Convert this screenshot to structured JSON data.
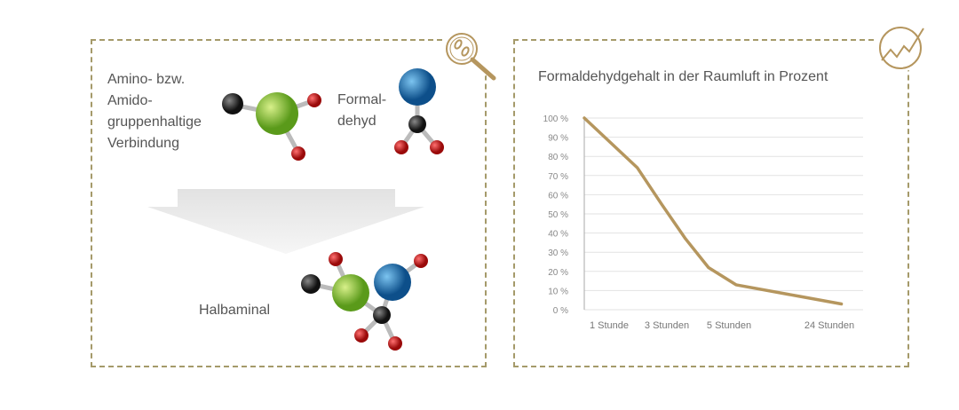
{
  "left_panel": {
    "reactant_a_label": "Amino- bzw.\nAmido-\ngruppenhaltige\nVerbindung",
    "reactant_b_label": "Formal-\ndehyd",
    "product_label": "Halbaminal",
    "icon": "magnifier-bacteria-icon"
  },
  "right_panel": {
    "icon": "trend-chart-icon"
  },
  "colors": {
    "accent": "#b5965e",
    "border": "#a59a6a",
    "green": "#8cc43a",
    "blue": "#1b6fae",
    "red": "#c8201f",
    "dark": "#333333"
  },
  "chart_data": {
    "type": "line",
    "title": "Formaldehydgehalt in der Raumluft in Prozent",
    "xlabel": "",
    "ylabel": "",
    "categories": [
      "1 Stunde",
      "3 Stunden",
      "5 Stunden",
      "24 Stunden"
    ],
    "y_ticks": [
      "0 %",
      "10 %",
      "20 %",
      "30 %",
      "40 %",
      "50 %",
      "60 %",
      "70 %",
      "80 %",
      "90 %",
      "100 %"
    ],
    "ylim": [
      0,
      100
    ],
    "grid": true,
    "series": [
      {
        "points": [
          [
            0.57,
            100
          ],
          [
            1.49,
            74
          ],
          [
            1.91,
            55
          ],
          [
            2.3,
            37
          ],
          [
            2.67,
            22
          ],
          [
            3.07,
            13
          ],
          [
            3.7,
            7
          ],
          [
            4.12,
            3
          ]
        ]
      }
    ]
  }
}
